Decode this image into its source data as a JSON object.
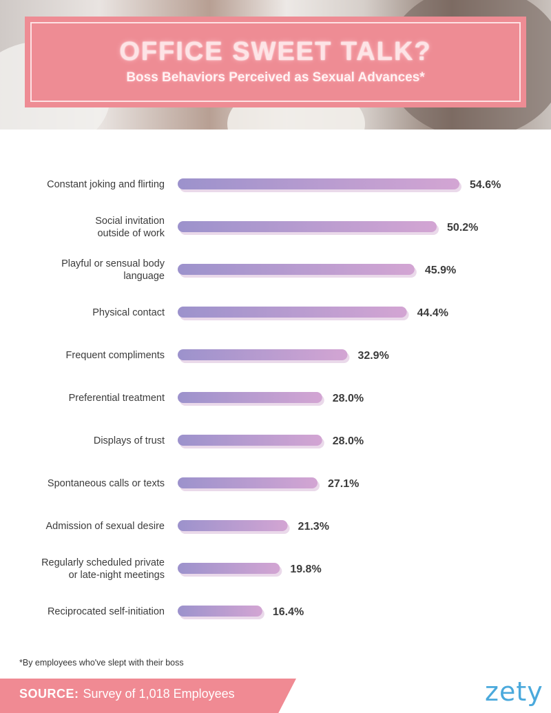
{
  "header": {
    "title": "OFFICE SWEET TALK?",
    "subtitle": "Boss Behaviors Perceived as Sexual Advances*"
  },
  "chart_data": {
    "type": "bar",
    "orientation": "horizontal",
    "title": "OFFICE SWEET TALK?",
    "subtitle": "Boss Behaviors Perceived as Sexual Advances*",
    "unit": "%",
    "xlim": [
      0,
      60
    ],
    "grid": false,
    "legend": "none",
    "categories": [
      [
        "Constant joking and flirting"
      ],
      [
        "Social invitation",
        "outside of work"
      ],
      [
        "Playful or sensual body",
        "language"
      ],
      [
        "Physical contact"
      ],
      [
        "Frequent compliments"
      ],
      [
        "Preferential treatment"
      ],
      [
        "Displays of trust"
      ],
      [
        "Spontaneous calls or texts"
      ],
      [
        "Admission of sexual desire"
      ],
      [
        "Regularly scheduled private",
        "or late-night meetings"
      ],
      [
        "Reciprocated self-initiation"
      ]
    ],
    "values": [
      54.6,
      50.2,
      45.9,
      44.4,
      32.9,
      28.0,
      28.0,
      27.1,
      21.3,
      19.8,
      16.4
    ],
    "value_labels": [
      "54.6%",
      "50.2%",
      "45.9%",
      "44.4%",
      "32.9%",
      "28.0%",
      "28.0%",
      "27.1%",
      "21.3%",
      "19.8%",
      "16.4%"
    ],
    "colors": {
      "bar_start": "#9c92cc",
      "bar_end": "#d3a5d3",
      "bar_shadow": "#ead9ea",
      "label": "#3b3b3b"
    }
  },
  "footnote": "*By employees who've slept with their boss",
  "source": {
    "label": "SOURCE:",
    "text": "Survey of 1,018 Employees"
  },
  "brand": "zety",
  "colors": {
    "banner": "#ee8c94",
    "source_banner": "#f08a93",
    "brand": "#4aa9dc"
  }
}
